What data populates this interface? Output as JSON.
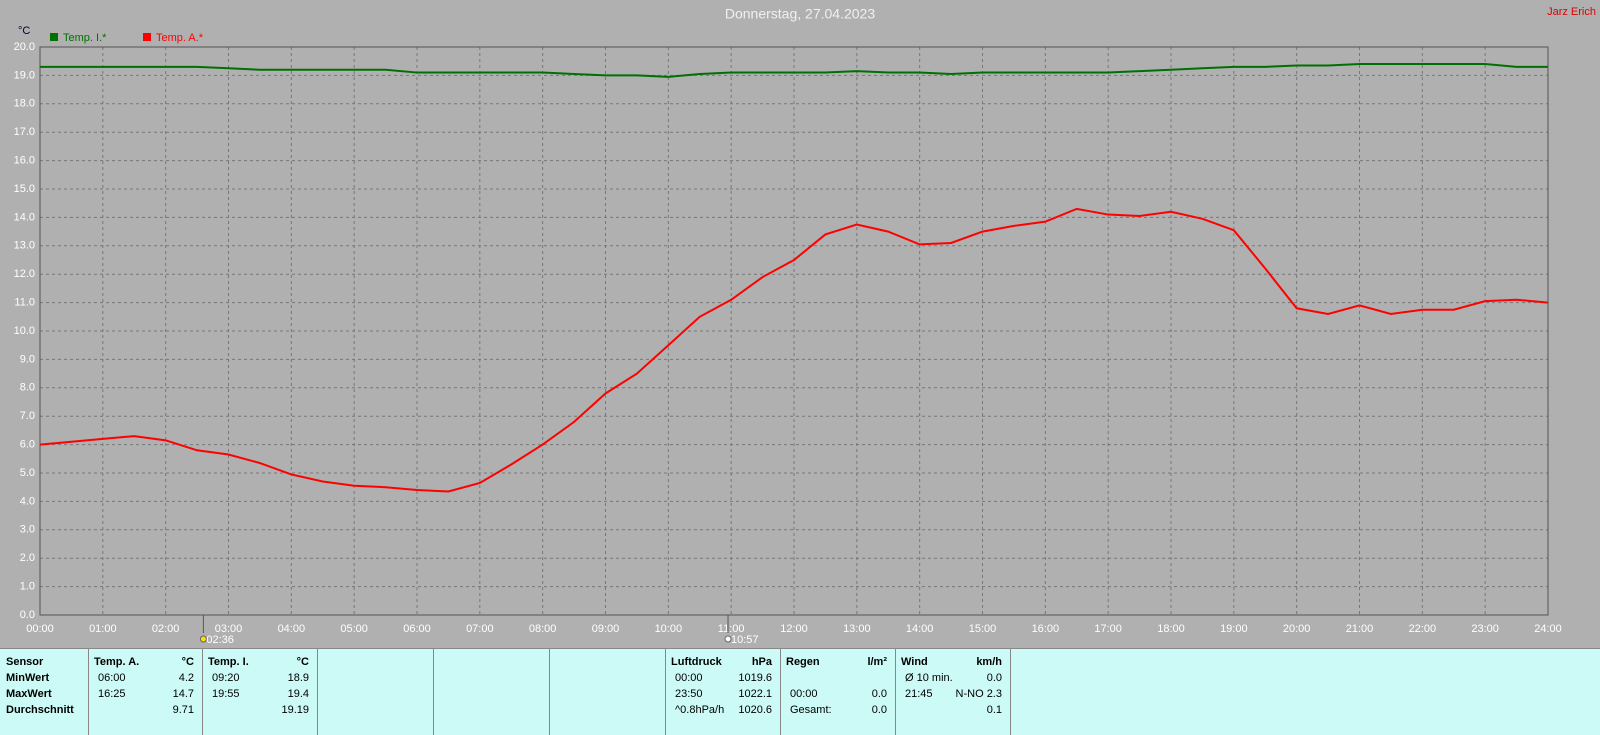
{
  "chart_data": {
    "type": "line",
    "title": "Donnerstag, 27.04.2023",
    "author": "Jarz Erich",
    "y_axis_label": "°C",
    "xlim": [
      0,
      24
    ],
    "xticks": [
      {
        "value": 0,
        "label": "00:00"
      },
      {
        "value": 1,
        "label": "01:00"
      },
      {
        "value": 2,
        "label": "02:00"
      },
      {
        "value": 3,
        "label": "03:00"
      },
      {
        "value": 4,
        "label": "04:00"
      },
      {
        "value": 5,
        "label": "05:00"
      },
      {
        "value": 6,
        "label": "06:00"
      },
      {
        "value": 7,
        "label": "07:00"
      },
      {
        "value": 8,
        "label": "08:00"
      },
      {
        "value": 9,
        "label": "09:00"
      },
      {
        "value": 10,
        "label": "10:00"
      },
      {
        "value": 11,
        "label": "11:00"
      },
      {
        "value": 12,
        "label": "12:00"
      },
      {
        "value": 13,
        "label": "13:00"
      },
      {
        "value": 14,
        "label": "14:00"
      },
      {
        "value": 15,
        "label": "15:00"
      },
      {
        "value": 16,
        "label": "16:00"
      },
      {
        "value": 17,
        "label": "17:00"
      },
      {
        "value": 18,
        "label": "18:00"
      },
      {
        "value": 19,
        "label": "19:00"
      },
      {
        "value": 20,
        "label": "20:00"
      },
      {
        "value": 21,
        "label": "21:00"
      },
      {
        "value": 22,
        "label": "22:00"
      },
      {
        "value": 23,
        "label": "23:00"
      },
      {
        "value": 24,
        "label": "24:00"
      }
    ],
    "ylim": [
      0,
      20
    ],
    "yticks": [
      {
        "value": 0,
        "label": "0.0"
      },
      {
        "value": 1,
        "label": "1.0"
      },
      {
        "value": 2,
        "label": "2.0"
      },
      {
        "value": 3,
        "label": "3.0"
      },
      {
        "value": 4,
        "label": "4.0"
      },
      {
        "value": 5,
        "label": "5.0"
      },
      {
        "value": 6,
        "label": "6.0"
      },
      {
        "value": 7,
        "label": "7.0"
      },
      {
        "value": 8,
        "label": "8.0"
      },
      {
        "value": 9,
        "label": "9.0"
      },
      {
        "value": 10,
        "label": "10.0"
      },
      {
        "value": 11,
        "label": "11.0"
      },
      {
        "value": 12,
        "label": "12.0"
      },
      {
        "value": 13,
        "label": "13.0"
      },
      {
        "value": 14,
        "label": "14.0"
      },
      {
        "value": 15,
        "label": "15.0"
      },
      {
        "value": 16,
        "label": "16.0"
      },
      {
        "value": 17,
        "label": "17.0"
      },
      {
        "value": 18,
        "label": "18.0"
      },
      {
        "value": 19,
        "label": "19.0"
      },
      {
        "value": 20,
        "label": "20.0"
      }
    ],
    "grid": true,
    "markers": [
      {
        "value": 2.6,
        "label": "02:36"
      },
      {
        "value": 10.95,
        "label": "10:57"
      }
    ],
    "x": [
      0,
      0.5,
      1,
      1.5,
      2,
      2.5,
      3,
      3.5,
      4,
      4.5,
      5,
      5.5,
      6,
      6.5,
      7,
      7.5,
      8,
      8.5,
      9,
      9.5,
      10,
      10.5,
      11,
      11.5,
      12,
      12.5,
      13,
      13.5,
      14,
      14.5,
      15,
      15.5,
      16,
      16.5,
      17,
      17.5,
      18,
      18.5,
      19,
      19.5,
      20,
      20.5,
      21,
      21.5,
      22,
      22.5,
      23,
      23.5,
      24
    ],
    "series": [
      {
        "name": "Temp. I.*",
        "color": "#007000",
        "values": [
          19.3,
          19.3,
          19.3,
          19.3,
          19.3,
          19.3,
          19.25,
          19.2,
          19.2,
          19.2,
          19.2,
          19.2,
          19.1,
          19.1,
          19.1,
          19.1,
          19.1,
          19.05,
          19.0,
          19.0,
          18.95,
          19.05,
          19.1,
          19.1,
          19.1,
          19.1,
          19.15,
          19.1,
          19.1,
          19.05,
          19.1,
          19.1,
          19.1,
          19.1,
          19.1,
          19.15,
          19.2,
          19.25,
          19.3,
          19.3,
          19.35,
          19.35,
          19.4,
          19.4,
          19.4,
          19.4,
          19.4,
          19.3,
          19.3
        ]
      },
      {
        "name": "Temp. A.*",
        "color": "#ff0000",
        "values": [
          6.0,
          6.1,
          6.2,
          6.3,
          6.15,
          5.8,
          5.65,
          5.35,
          4.95,
          4.7,
          4.55,
          4.5,
          4.4,
          4.35,
          4.65,
          5.3,
          6.0,
          6.8,
          7.8,
          8.5,
          9.5,
          10.5,
          11.1,
          11.9,
          12.5,
          13.4,
          13.75,
          13.5,
          13.05,
          13.1,
          13.5,
          13.7,
          13.85,
          14.3,
          14.1,
          14.05,
          14.2,
          13.95,
          13.55,
          12.2,
          10.8,
          10.6,
          10.9,
          10.6,
          10.75,
          10.75,
          11.05,
          11.1,
          11.0
        ]
      }
    ]
  },
  "table": {
    "columns": [
      {
        "header": [
          "Sensor",
          null
        ],
        "rows": [
          [
            "MinWert",
            null
          ],
          [
            "MaxWert",
            null
          ],
          [
            "Durchschnitt",
            null
          ]
        ]
      },
      {
        "header": [
          "Temp. A.",
          "°C"
        ],
        "rows": [
          [
            "06:00",
            "4.2"
          ],
          [
            "16:25",
            "14.7"
          ],
          [
            null,
            "9.71"
          ]
        ]
      },
      {
        "header": [
          "Temp. I.",
          "°C"
        ],
        "rows": [
          [
            "09:20",
            "18.9"
          ],
          [
            "19:55",
            "19.4"
          ],
          [
            null,
            "19.19"
          ]
        ]
      },
      {
        "header": [
          "Luftdruck",
          "hPa"
        ],
        "rows": [
          [
            "00:00",
            "1019.6"
          ],
          [
            "23:50",
            "1022.1"
          ],
          [
            "^0.8hPa/h",
            "1020.6"
          ]
        ]
      },
      {
        "header": [
          "Regen",
          "l/m²"
        ],
        "rows": [
          [
            null,
            null
          ],
          [
            "00:00",
            "0.0"
          ],
          [
            "Gesamt:",
            "0.0"
          ]
        ]
      },
      {
        "header": [
          "Wind",
          "km/h"
        ],
        "rows": [
          [
            "Ø 10 min.",
            "0.0"
          ],
          [
            "21:45",
            "N-NO 2.3"
          ],
          [
            null,
            "0.1"
          ]
        ]
      }
    ]
  }
}
